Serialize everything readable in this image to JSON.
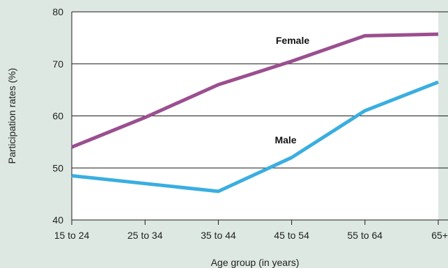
{
  "chart_data": {
    "type": "line",
    "title": "",
    "xlabel": "Age group (in years)",
    "ylabel": "Participation rates (%)",
    "categories": [
      "15 to 24",
      "25 to 34",
      "35 to 44",
      "45 to 54",
      "55 to 64",
      "65+"
    ],
    "ylim": [
      40,
      80
    ],
    "yticks": [
      40,
      50,
      60,
      70,
      80
    ],
    "grid": true,
    "legend": "none",
    "series": [
      {
        "name": "Female",
        "color": "#9b4f8f",
        "values": [
          54,
          59.7,
          66,
          70.5,
          75.4,
          75.7
        ]
      },
      {
        "name": "Male",
        "color": "#3aaee0",
        "values": [
          48.5,
          47,
          45.5,
          52,
          61,
          66.5
        ]
      }
    ]
  }
}
